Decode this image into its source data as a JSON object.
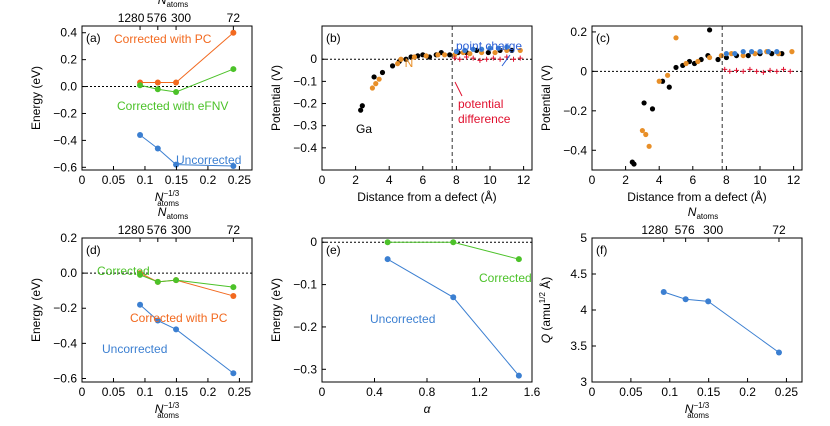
{
  "colors": {
    "blue": "#3b7fd1",
    "orange": "#f2691f",
    "green": "#4cc229",
    "red": "#e0102e",
    "marker_orange": "#e88f28",
    "black": "#000000"
  },
  "chart_data": [
    {
      "id": "a",
      "type": "line",
      "panel_label": "(a)",
      "xlabel_main": "N",
      "xlabel_sup": "−1/3",
      "xlabel_sub": "atoms",
      "ylabel": "Energy (eV)",
      "xlim": [
        0,
        0.27
      ],
      "ylim": [
        -0.62,
        0.45
      ],
      "xticks": [
        0,
        0.05,
        0.1,
        0.15,
        0.2,
        0.25
      ],
      "xtick_labels": [
        "0",
        "0.05",
        "0.1",
        "0.15",
        "0.2",
        "0.25"
      ],
      "yticks": [
        0.4,
        0.2,
        0.0,
        -0.2,
        -0.4,
        -0.6
      ],
      "ytick_labels": [
        "0.4",
        "0.2",
        "0.0",
        "−0.2",
        "−0.4",
        "−0.6"
      ],
      "top_axis": {
        "label_main": "N",
        "label_sub": "atoms",
        "positions": [
          0.0922,
          0.1204,
          0.1494,
          0.2404
        ],
        "tick_labels": [
          "1280",
          "576",
          "300",
          "72"
        ]
      },
      "x": [
        0.0922,
        0.1204,
        0.1494,
        0.2404
      ],
      "series": [
        {
          "name": "Corrected with PC",
          "color": "#f2691f",
          "values": [
            0.03,
            0.03,
            0.03,
            0.4
          ]
        },
        {
          "name": "Corrected with eFNV",
          "color": "#4cc229",
          "values": [
            0.01,
            -0.02,
            -0.04,
            0.13
          ]
        },
        {
          "name": "Uncorrected",
          "color": "#3b7fd1",
          "values": [
            -0.36,
            -0.46,
            -0.58,
            -0.59
          ]
        }
      ]
    },
    {
      "id": "b",
      "type": "scatter",
      "panel_label": "(b)",
      "xlabel": "Distance from a defect (Å)",
      "ylabel": "Potential (V)",
      "xlim": [
        0,
        12.5
      ],
      "ylim": [
        -0.5,
        0.15
      ],
      "xticks": [
        0,
        2,
        4,
        6,
        8,
        10,
        12
      ],
      "xtick_labels": [
        "0",
        "2",
        "4",
        "6",
        "8",
        "10",
        "12"
      ],
      "yticks": [
        0,
        -0.1,
        -0.2,
        -0.3,
        -0.4
      ],
      "ytick_labels": [
        "0",
        "−0.1",
        "−0.2",
        "−0.3",
        "−0.4"
      ],
      "cutoff_x": 7.75,
      "annotations": {
        "ga": "Ga",
        "n": "N",
        "point_charge": "point charge",
        "potential_difference": "potential difference"
      },
      "series": [
        {
          "name": "Ga",
          "color": "#000000",
          "x": [
            2.3,
            2.4,
            3.1,
            3.6,
            4.2,
            4.6,
            5.0,
            5.3,
            5.7,
            6.0,
            6.4,
            6.8,
            7.1,
            7.6,
            8.1,
            8.6,
            9.2,
            9.9,
            10.6,
            11.3
          ],
          "y": [
            -0.23,
            -0.21,
            -0.08,
            -0.06,
            -0.03,
            -0.01,
            0.0,
            0.01,
            0.015,
            0.02,
            0.01,
            0.02,
            0.03,
            0.02,
            0.03,
            0.03,
            0.04,
            0.03,
            0.04,
            0.04
          ]
        },
        {
          "name": "N",
          "color": "#e88f28",
          "x": [
            3.0,
            3.2,
            3.4,
            4.5,
            4.7,
            5.5,
            6.2,
            6.9,
            7.3,
            7.9,
            8.4,
            8.8,
            9.5,
            10.3,
            11.0,
            11.8
          ],
          "y": [
            -0.13,
            -0.11,
            -0.09,
            -0.02,
            0.0,
            0.01,
            0.015,
            0.02,
            0.02,
            0.02,
            0.03,
            0.025,
            0.03,
            0.03,
            0.04,
            0.04
          ]
        },
        {
          "name": "point charge",
          "color": "#3b7fd1",
          "x": [
            8.0,
            8.5,
            9.0,
            9.5,
            10.0,
            10.5,
            11.0
          ],
          "y": [
            0.035,
            0.04,
            0.045,
            0.045,
            0.05,
            0.05,
            0.055
          ]
        },
        {
          "name": "potential difference",
          "color": "#e0102e",
          "x": [
            7.9,
            8.2,
            8.6,
            9.0,
            9.4,
            9.8,
            10.2,
            10.6,
            11.0,
            11.4,
            11.8
          ],
          "y": [
            0.005,
            0.0,
            0.01,
            0.005,
            -0.005,
            0.0,
            0.005,
            0.0,
            0.01,
            0.0,
            0.005
          ]
        }
      ]
    },
    {
      "id": "c",
      "type": "scatter",
      "panel_label": "(c)",
      "xlabel": "Distance from a defect (Å)",
      "ylabel": "Potential (V)",
      "xlim": [
        0,
        12.5
      ],
      "ylim": [
        -0.5,
        0.23
      ],
      "xticks": [
        0,
        2,
        4,
        6,
        8,
        10,
        12
      ],
      "xtick_labels": [
        "0",
        "2",
        "4",
        "6",
        "8",
        "10",
        "12"
      ],
      "yticks": [
        0.2,
        0,
        -0.2,
        -0.4
      ],
      "ytick_labels": [
        "0.2",
        "0",
        "−0.2",
        "−0.4"
      ],
      "cutoff_x": 7.75,
      "series": [
        {
          "name": "Ga",
          "color": "#000000",
          "x": [
            2.4,
            2.5,
            3.1,
            3.6,
            4.2,
            4.6,
            5.0,
            5.4,
            5.8,
            6.1,
            6.5,
            6.9,
            7.0,
            7.5,
            8.0,
            8.6,
            9.3,
            10.0,
            10.7,
            11.3
          ],
          "y": [
            -0.46,
            -0.47,
            -0.16,
            -0.19,
            -0.05,
            -0.08,
            0.02,
            0.03,
            0.05,
            0.04,
            0.06,
            0.08,
            0.21,
            0.06,
            0.07,
            0.08,
            0.08,
            0.09,
            0.09,
            0.09
          ]
        },
        {
          "name": "N",
          "color": "#e88f28",
          "x": [
            3.0,
            3.2,
            3.4,
            4.0,
            4.5,
            5.0,
            5.6,
            6.3,
            7.0,
            7.7,
            8.3,
            9.0,
            9.7,
            10.4,
            11.1,
            11.9
          ],
          "y": [
            -0.3,
            -0.32,
            -0.38,
            -0.05,
            -0.02,
            0.17,
            0.04,
            0.05,
            0.07,
            0.08,
            0.09,
            0.08,
            0.09,
            0.1,
            0.09,
            0.1
          ]
        },
        {
          "name": "point charge",
          "color": "#3b7fd1",
          "x": [
            8.0,
            8.5,
            9.0,
            9.5,
            10.0,
            10.5,
            11.0
          ],
          "y": [
            0.09,
            0.09,
            0.1,
            0.1,
            0.1,
            0.1,
            0.1
          ]
        },
        {
          "name": "potential difference",
          "color": "#e0102e",
          "x": [
            7.9,
            8.2,
            8.6,
            9.0,
            9.4,
            9.8,
            10.2,
            10.6,
            11.0,
            11.4,
            11.8
          ],
          "y": [
            0.01,
            0.0,
            0.005,
            0.0,
            0.01,
            0.0,
            -0.005,
            0.005,
            0.0,
            0.01,
            0.0
          ]
        }
      ]
    },
    {
      "id": "d",
      "type": "line",
      "panel_label": "(d)",
      "xlabel_main": "N",
      "xlabel_sup": "−1/3",
      "xlabel_sub": "atoms",
      "ylabel": "Energy (eV)",
      "xlim": [
        0,
        0.27
      ],
      "ylim": [
        -0.62,
        0.2
      ],
      "xticks": [
        0,
        0.05,
        0.1,
        0.15,
        0.2,
        0.25
      ],
      "xtick_labels": [
        "0",
        "0.05",
        "0.1",
        "0.15",
        "0.2",
        "0.25"
      ],
      "yticks": [
        0.2,
        0.0,
        -0.2,
        -0.4,
        -0.6
      ],
      "ytick_labels": [
        "0.2",
        "0.0",
        "−0.2",
        "−0.4",
        "−0.6"
      ],
      "top_axis": {
        "label_main": "N",
        "label_sub": "atoms",
        "positions": [
          0.0922,
          0.1204,
          0.1494,
          0.2404
        ],
        "tick_labels": [
          "1280",
          "576",
          "300",
          "72"
        ]
      },
      "x": [
        0.0922,
        0.1204,
        0.1494,
        0.2404
      ],
      "series": [
        {
          "name": "Corrected with PC",
          "color": "#f2691f",
          "values": [
            0.0,
            -0.05,
            -0.04,
            -0.13
          ]
        },
        {
          "name": "Corrected",
          "color": "#4cc229",
          "values": [
            -0.01,
            -0.05,
            -0.04,
            -0.08
          ]
        },
        {
          "name": "Uncorrected",
          "color": "#3b7fd1",
          "values": [
            -0.18,
            -0.27,
            -0.32,
            -0.57
          ]
        }
      ]
    },
    {
      "id": "e",
      "type": "line",
      "panel_label": "(e)",
      "xlabel": "α",
      "ylabel": "Energy (eV)",
      "xlim": [
        0,
        1.6
      ],
      "ylim": [
        -0.33,
        0.01
      ],
      "xticks": [
        0,
        0.4,
        0.8,
        1.2,
        1.6
      ],
      "xtick_labels": [
        "0",
        "0.4",
        "0.8",
        "1.2",
        "1.6"
      ],
      "yticks": [
        0,
        -0.1,
        -0.2,
        -0.3
      ],
      "ytick_labels": [
        "0",
        "−0.1",
        "−0.2",
        "−0.3"
      ],
      "x": [
        0.5,
        1.0,
        1.5
      ],
      "series": [
        {
          "name": "Corrected",
          "color": "#4cc229",
          "values": [
            0.0,
            0.0,
            -0.04
          ]
        },
        {
          "name": "Uncorrected",
          "color": "#3b7fd1",
          "values": [
            -0.04,
            -0.13,
            -0.315
          ]
        }
      ]
    },
    {
      "id": "f",
      "type": "line",
      "panel_label": "(f)",
      "xlabel_main": "N",
      "xlabel_sup": "−1/3",
      "xlabel_sub": "atoms",
      "ylabel_main": "Q",
      "ylabel_rest": " (amu",
      "ylabel_sup": "1/2",
      "ylabel_end": " Å)",
      "xlim": [
        0,
        0.27
      ],
      "ylim": [
        3,
        5
      ],
      "xticks": [
        0,
        0.05,
        0.1,
        0.15,
        0.2,
        0.25
      ],
      "xtick_labels": [
        "0",
        "0.05",
        "0.1",
        "0.15",
        "0.2",
        "0.25"
      ],
      "yticks": [
        5,
        4.5,
        4,
        3.5,
        3
      ],
      "ytick_labels": [
        "5",
        "4.5",
        "4",
        "3.5",
        "3"
      ],
      "top_axis": {
        "label_main": "N",
        "label_sub": "atoms",
        "positions": [
          0.0922,
          0.1204,
          0.1494,
          0.2404
        ],
        "tick_labels": [
          "1280",
          "576",
          "300",
          "72"
        ]
      },
      "x": [
        0.0922,
        0.1204,
        0.1494,
        0.2404
      ],
      "series": [
        {
          "name": "Q",
          "color": "#3b7fd1",
          "values": [
            4.25,
            4.15,
            4.12,
            3.41
          ]
        }
      ]
    }
  ]
}
